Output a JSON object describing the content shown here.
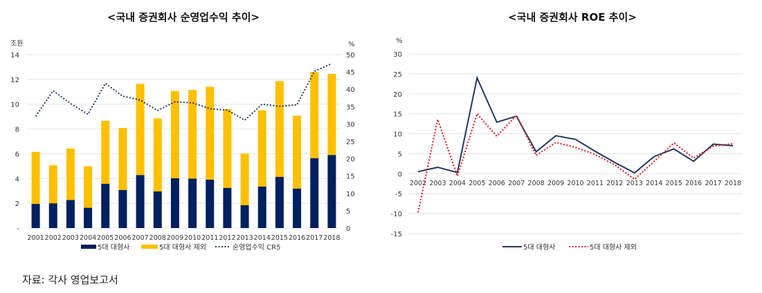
{
  "chart_data": [
    {
      "type": "bar",
      "stacked": true,
      "title": "<국내 증권회사 순영업수익 추이>",
      "ylabel": "조원",
      "y2label": "%",
      "ylim": [
        0,
        14
      ],
      "y2lim": [
        0,
        50
      ],
      "yticks": [
        "-",
        "2",
        "4",
        "6",
        "8",
        "10",
        "12",
        "14"
      ],
      "y2ticks": [
        "0",
        "5",
        "10",
        "15",
        "20",
        "25",
        "30",
        "35",
        "40",
        "45",
        "50"
      ],
      "categories": [
        "2001",
        "2002",
        "2003",
        "2004",
        "2005",
        "2006",
        "2007",
        "2008",
        "2009",
        "2010",
        "2011",
        "2012",
        "2013",
        "2014",
        "2015",
        "2016",
        "2017",
        "2018"
      ],
      "series": [
        {
          "name": "5대 대형사",
          "type": "bar",
          "color": "#002060",
          "values": [
            1.95,
            2.0,
            2.27,
            1.64,
            3.58,
            3.07,
            4.28,
            2.96,
            4.02,
            3.99,
            3.91,
            3.24,
            1.84,
            3.35,
            4.13,
            3.18,
            5.64,
            5.9
          ]
        },
        {
          "name": "5대 대형사 제외",
          "type": "bar",
          "color": "#FFC000",
          "values": [
            4.2,
            3.07,
            4.15,
            3.35,
            5.08,
            5.01,
            7.36,
            5.89,
            7.04,
            7.16,
            7.49,
            6.35,
            4.17,
            6.15,
            7.73,
            5.89,
            6.95,
            6.54
          ]
        },
        {
          "name": "순영업수익 CR5",
          "type": "line",
          "axis": "right",
          "style": "dotted",
          "color": "#1F3864",
          "values": [
            32.2,
            39.6,
            35.9,
            32.8,
            41.7,
            38.0,
            36.9,
            33.9,
            36.4,
            36.1,
            34.4,
            34.0,
            31.1,
            35.7,
            35.1,
            35.5,
            45.2,
            47.4
          ]
        }
      ],
      "grid": true,
      "legend": "bottom"
    },
    {
      "type": "line",
      "title": "<국내 증권회사 ROE 추이>",
      "ylabel": "%",
      "ylim": [
        -15,
        30
      ],
      "yticks": [
        "-15",
        "-10",
        "-5",
        "0",
        "5",
        "10",
        "15",
        "20",
        "25",
        "30"
      ],
      "categories": [
        "2002",
        "2003",
        "2004",
        "2005",
        "2006",
        "2007",
        "2008",
        "2009",
        "2010",
        "2011",
        "2012",
        "2013",
        "2014",
        "2015",
        "2016",
        "2017",
        "2018"
      ],
      "series": [
        {
          "name": "5대 대형사",
          "style": "solid",
          "color": "#1F3864",
          "values": [
            0.5,
            1.6,
            0.3,
            24.0,
            12.9,
            14.4,
            5.5,
            9.5,
            8.6,
            5.6,
            2.8,
            0.2,
            4.3,
            6.2,
            3.1,
            7.4,
            7.0
          ]
        },
        {
          "name": "5대 대형사 제외",
          "style": "dotted",
          "color": "#E0202A",
          "values": [
            -9.7,
            13.6,
            -0.6,
            15.0,
            9.4,
            14.6,
            4.6,
            7.8,
            6.6,
            4.8,
            2.2,
            -1.4,
            3.1,
            7.7,
            3.9,
            6.9,
            7.5
          ]
        }
      ],
      "grid": true,
      "legend": "bottom"
    }
  ],
  "source": "자료: 각사 영업보고서"
}
